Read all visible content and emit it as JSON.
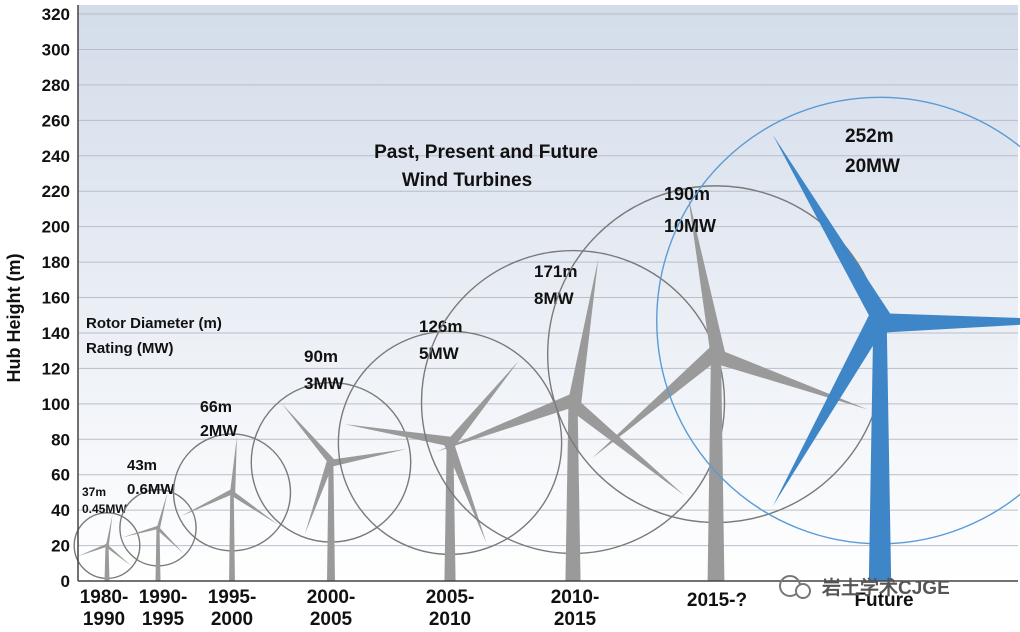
{
  "chart_data": {
    "type": "scatter",
    "title_line1": "Past, Present and Future",
    "title_line2": "Wind Turbines",
    "ylabel": "Hub Height (m)",
    "ylim": [
      0,
      320
    ],
    "yticks": [
      0,
      20,
      40,
      60,
      80,
      100,
      120,
      140,
      160,
      180,
      200,
      220,
      240,
      260,
      280,
      300,
      320
    ],
    "grid": true,
    "legend": {
      "line1": "Rotor Diameter (m)",
      "line2": "Rating (MW)",
      "placement": "middle-left"
    },
    "turbines": [
      {
        "period_line1": "1980-",
        "period_line2": "1990",
        "hub_height": 20,
        "rotor_label": "37m",
        "rating_label": "0.45MW",
        "color": "#9a9a9a"
      },
      {
        "period_line1": "1990-",
        "period_line2": "1995",
        "hub_height": 30,
        "rotor_label": "43m",
        "rating_label": "0.6MW",
        "color": "#9a9a9a"
      },
      {
        "period_line1": "1995-",
        "period_line2": "2000",
        "hub_height": 50,
        "rotor_label": "66m",
        "rating_label": "2MW",
        "color": "#9a9a9a"
      },
      {
        "period_line1": "2000-",
        "period_line2": "2005",
        "hub_height": 67,
        "rotor_label": "90m",
        "rating_label": "3MW",
        "color": "#9a9a9a"
      },
      {
        "period_line1": "2005-",
        "period_line2": "2010",
        "hub_height": 78,
        "rotor_label": "126m",
        "rating_label": "5MW",
        "color": "#9a9a9a"
      },
      {
        "period_line1": "2010-",
        "period_line2": "2015",
        "hub_height": 101,
        "rotor_label": "171m",
        "rating_label": "8MW",
        "color": "#9a9a9a"
      },
      {
        "period_line1": "2015-?",
        "period_line2": "",
        "hub_height": 128,
        "rotor_label": "190m",
        "rating_label": "10MW",
        "color": "#9a9a9a"
      },
      {
        "period_line1": "Future",
        "period_line2": "",
        "hub_height": 147,
        "rotor_label": "252m",
        "rating_label": "20MW",
        "color": "#3f86c8"
      }
    ]
  },
  "watermark": "岩土学术CJGE"
}
